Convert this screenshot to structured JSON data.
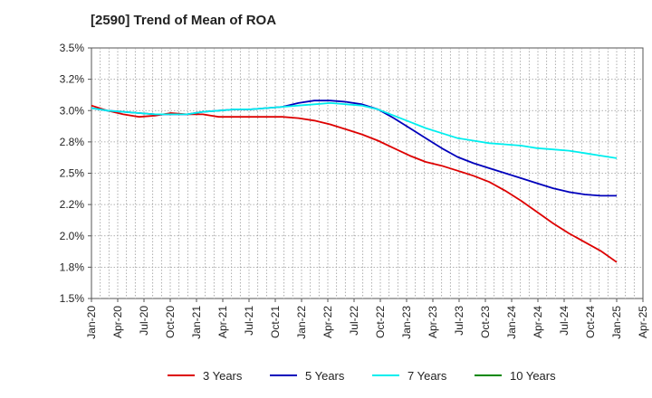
{
  "chart_data": {
    "type": "line",
    "title": "[2590]  Trend of Mean of ROA",
    "xlabel": "",
    "ylabel": "",
    "ylim": [
      1.5,
      3.5
    ],
    "grid": true,
    "legend_placement": "bottom-center",
    "y_ticks": [
      1.5,
      1.75,
      2.0,
      2.25,
      2.5,
      2.75,
      3.0,
      3.25,
      3.5
    ],
    "y_tick_labels": [
      "1.5%",
      "1.8%",
      "2.0%",
      "2.2%",
      "2.5%",
      "2.8%",
      "3.0%",
      "3.2%",
      "3.5%"
    ],
    "x_tick_labels": [
      "Jan-20",
      "Apr-20",
      "Jul-20",
      "Oct-20",
      "Jan-21",
      "Apr-21",
      "Jul-21",
      "Oct-21",
      "Jan-22",
      "Apr-22",
      "Jul-22",
      "Oct-22",
      "Jan-23",
      "Apr-23",
      "Jul-23",
      "Oct-23",
      "Jan-24",
      "Apr-24",
      "Jul-24",
      "Oct-24",
      "Jan-25",
      "Apr-25"
    ],
    "series": [
      {
        "name": "3 Years",
        "color": "#dd0000",
        "values": [
          3.04,
          3.0,
          2.97,
          2.95,
          2.96,
          2.98,
          2.97,
          2.97,
          2.95,
          2.95,
          2.95,
          2.95,
          2.95,
          2.94,
          2.92,
          2.89,
          2.85,
          2.81,
          2.76,
          2.7,
          2.64,
          2.59,
          2.56,
          2.52,
          2.48,
          2.43,
          2.36,
          2.28,
          2.19,
          2.1,
          2.02,
          1.95,
          1.88,
          1.79
        ]
      },
      {
        "name": "5 Years",
        "color": "#0000bb",
        "values": [
          3.02,
          3.0,
          2.99,
          2.98,
          2.97,
          2.97,
          2.97,
          2.99,
          3.0,
          3.01,
          3.01,
          3.02,
          3.03,
          3.06,
          3.08,
          3.08,
          3.07,
          3.05,
          3.01,
          2.94,
          2.86,
          2.78,
          2.7,
          2.63,
          2.58,
          2.54,
          2.5,
          2.46,
          2.42,
          2.38,
          2.35,
          2.33,
          2.32,
          2.32
        ]
      },
      {
        "name": "7 Years",
        "color": "#00eeee",
        "values": [
          3.02,
          3.0,
          2.99,
          2.98,
          2.97,
          2.97,
          2.97,
          2.99,
          3.0,
          3.01,
          3.01,
          3.02,
          3.03,
          3.04,
          3.05,
          3.06,
          3.05,
          3.04,
          3.01,
          2.96,
          2.91,
          2.86,
          2.82,
          2.78,
          2.76,
          2.74,
          2.73,
          2.72,
          2.7,
          2.69,
          2.68,
          2.66,
          2.64,
          2.62
        ]
      },
      {
        "name": "10 Years",
        "color": "#008800",
        "values": []
      }
    ]
  }
}
